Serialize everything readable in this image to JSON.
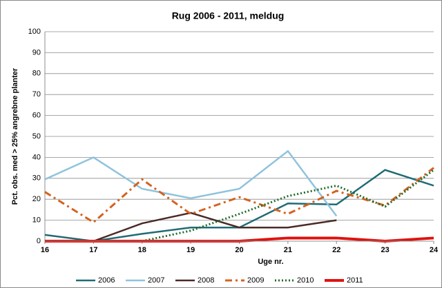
{
  "chart_data": {
    "type": "line",
    "title": "Rug 2006 - 2011, meldug",
    "x_label": "Uge nr.",
    "y_label": "Pct. obs. med > 25% angrebne planter",
    "x": [
      16,
      17,
      18,
      19,
      20,
      21,
      22,
      23,
      24
    ],
    "xlim": [
      16,
      24
    ],
    "xticks": [
      16,
      17,
      18,
      19,
      20,
      21,
      22,
      23,
      24
    ],
    "ylim": [
      0,
      100
    ],
    "yticks": [
      0,
      10,
      20,
      30,
      40,
      50,
      60,
      70,
      80,
      90,
      100
    ],
    "grid": true,
    "legend": "bottom",
    "series": [
      {
        "name": "2006",
        "color": "#1f6b75",
        "line_style": "solid",
        "values": [
          3,
          0,
          3.5,
          6.5,
          6.5,
          18,
          17.5,
          34,
          26.5
        ]
      },
      {
        "name": "2007",
        "color": "#8fc3dc",
        "line_style": "solid",
        "values": [
          29.5,
          40,
          25,
          20.5,
          25,
          43,
          12,
          null,
          null
        ]
      },
      {
        "name": "2008",
        "color": "#4a2a26",
        "line_style": "solid",
        "values": [
          null,
          0,
          8.5,
          13.5,
          6.5,
          6.5,
          10,
          null,
          null
        ]
      },
      {
        "name": "2009",
        "color": "#d4621f",
        "line_style": "dashdot",
        "values": [
          23.5,
          9,
          29.5,
          13,
          21,
          13,
          24,
          17,
          35
        ]
      },
      {
        "name": "2010",
        "color": "#1e6b2a",
        "line_style": "dotted",
        "values": [
          null,
          null,
          0,
          5,
          13,
          21.5,
          26.5,
          16.5,
          34
        ]
      },
      {
        "name": "2011",
        "color": "#e0120f",
        "line_style": "thick",
        "values": [
          0,
          0,
          0,
          0,
          0,
          1.5,
          1.5,
          0,
          1.5
        ]
      }
    ]
  }
}
